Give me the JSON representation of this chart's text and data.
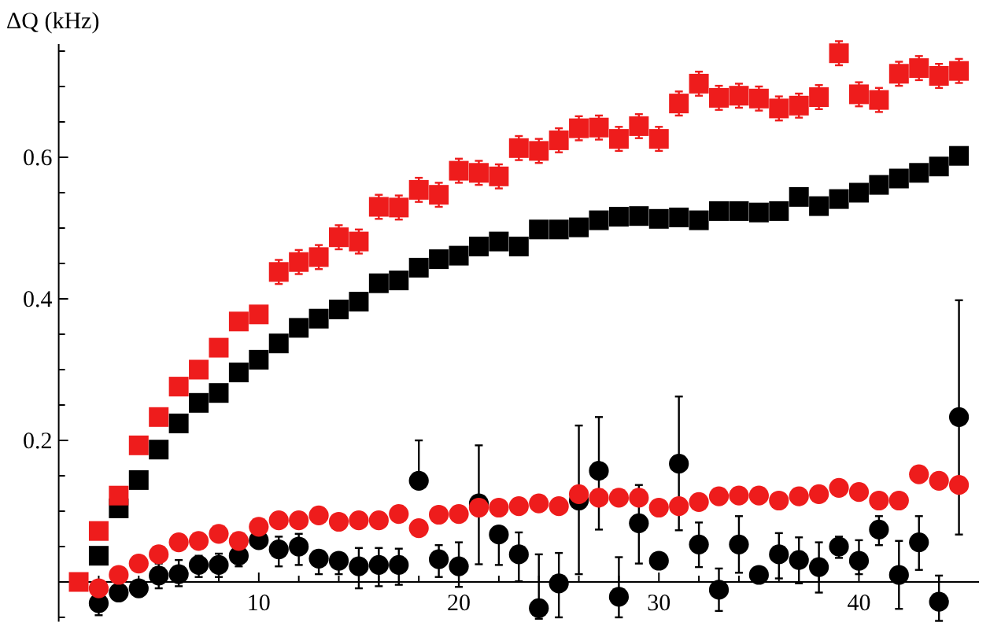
{
  "chart_data": {
    "type": "scatter",
    "ylabel": "ΔQ (kHz)",
    "xlim": [
      0,
      46
    ],
    "ylim": [
      -0.056,
      0.76
    ],
    "xticks": [
      {
        "value": 2,
        "label": null
      },
      {
        "value": 4,
        "label": null
      },
      {
        "value": 6,
        "label": null
      },
      {
        "value": 8,
        "label": null
      },
      10,
      {
        "value": 12,
        "label": null
      },
      {
        "value": 14,
        "label": null
      },
      {
        "value": 16,
        "label": null
      },
      {
        "value": 18,
        "label": null
      },
      20,
      {
        "value": 22,
        "label": null
      },
      {
        "value": 24,
        "label": null
      },
      {
        "value": 26,
        "label": null
      },
      {
        "value": 28,
        "label": null
      },
      30,
      {
        "value": 32,
        "label": null
      },
      {
        "value": 34,
        "label": null
      },
      {
        "value": 36,
        "label": null
      },
      {
        "value": 38,
        "label": null
      },
      40,
      {
        "value": 42,
        "label": null
      },
      {
        "value": 44,
        "label": null
      }
    ],
    "yticks": [
      {
        "value": -0.05,
        "label": null
      },
      {
        "value": 0.05,
        "label": null
      },
      {
        "value": 0.1,
        "label": null
      },
      {
        "value": 0.15,
        "label": null
      },
      0.2,
      {
        "value": 0.25,
        "label": null
      },
      {
        "value": 0.3,
        "label": null
      },
      {
        "value": 0.35,
        "label": null
      },
      0.4,
      {
        "value": 0.45,
        "label": null
      },
      {
        "value": 0.5,
        "label": null
      },
      {
        "value": 0.55,
        "label": null
      },
      0.6,
      {
        "value": 0.65,
        "label": null
      },
      {
        "value": 0.7,
        "label": null
      },
      {
        "value": 0.75,
        "label": null
      }
    ],
    "grid": false,
    "series": [
      {
        "color": "#ee1c1c",
        "marker": "square",
        "x": [
          1,
          2,
          3,
          4,
          5,
          6,
          7,
          8,
          9,
          10,
          11,
          12,
          13,
          14,
          15,
          16,
          17,
          18,
          19,
          20,
          21,
          22,
          23,
          24,
          25,
          26,
          27,
          28,
          29,
          30,
          31,
          32,
          33,
          34,
          35,
          36,
          37,
          38,
          39,
          40,
          41,
          42,
          43,
          44,
          45
        ],
        "values": [
          0.0,
          0.072,
          0.122,
          0.193,
          0.233,
          0.276,
          0.3,
          0.331,
          0.368,
          0.378,
          0.438,
          0.452,
          0.459,
          0.487,
          0.481,
          0.53,
          0.529,
          0.554,
          0.547,
          0.581,
          0.578,
          0.573,
          0.613,
          0.609,
          0.624,
          0.641,
          0.642,
          0.626,
          0.644,
          0.626,
          0.676,
          0.704,
          0.684,
          0.687,
          0.683,
          0.669,
          0.673,
          0.685,
          0.747,
          0.689,
          0.681,
          0.718,
          0.726,
          0.715,
          0.722
        ],
        "errors": [
          null,
          null,
          null,
          null,
          null,
          null,
          null,
          null,
          null,
          null,
          0.017,
          0.017,
          0.017,
          0.017,
          0.017,
          0.017,
          0.017,
          0.017,
          0.017,
          0.017,
          0.017,
          0.017,
          0.017,
          0.017,
          0.017,
          0.017,
          0.017,
          0.017,
          0.017,
          0.017,
          0.017,
          0.017,
          0.017,
          0.017,
          0.017,
          0.017,
          0.017,
          0.017,
          0.017,
          0.017,
          0.017,
          0.017,
          0.017,
          0.017,
          0.017
        ]
      },
      {
        "color": "#000000",
        "marker": "square",
        "x": [
          2,
          3,
          4,
          5,
          6,
          7,
          8,
          9,
          10,
          11,
          12,
          13,
          14,
          15,
          16,
          17,
          18,
          19,
          20,
          21,
          22,
          23,
          24,
          25,
          26,
          27,
          28,
          29,
          30,
          31,
          32,
          33,
          34,
          35,
          36,
          37,
          38,
          39,
          40,
          41,
          42,
          43,
          44,
          45
        ],
        "values": [
          0.037,
          0.104,
          0.144,
          0.187,
          0.224,
          0.253,
          0.267,
          0.296,
          0.314,
          0.337,
          0.359,
          0.372,
          0.385,
          0.396,
          0.422,
          0.426,
          0.444,
          0.456,
          0.461,
          0.474,
          0.481,
          0.474,
          0.498,
          0.498,
          0.501,
          0.511,
          0.516,
          0.517,
          0.513,
          0.515,
          0.511,
          0.524,
          0.524,
          0.522,
          0.524,
          0.544,
          0.531,
          0.541,
          0.55,
          0.561,
          0.57,
          0.578,
          0.587,
          0.602
        ]
      },
      {
        "color": "#ee1c1c",
        "marker": "circle",
        "x": [
          2,
          3,
          4,
          5,
          6,
          7,
          8,
          9,
          10,
          11,
          12,
          13,
          14,
          15,
          16,
          17,
          18,
          19,
          20,
          21,
          22,
          23,
          24,
          25,
          26,
          27,
          28,
          29,
          30,
          31,
          32,
          33,
          34,
          35,
          36,
          37,
          38,
          39,
          40,
          41,
          42,
          43,
          44,
          45
        ],
        "values": [
          -0.009,
          0.01,
          0.026,
          0.039,
          0.056,
          0.058,
          0.068,
          0.058,
          0.078,
          0.087,
          0.087,
          0.094,
          0.085,
          0.087,
          0.087,
          0.096,
          0.076,
          0.095,
          0.096,
          0.105,
          0.105,
          0.107,
          0.111,
          0.107,
          0.124,
          0.119,
          0.119,
          0.119,
          0.105,
          0.107,
          0.113,
          0.121,
          0.122,
          0.122,
          0.115,
          0.121,
          0.124,
          0.133,
          0.127,
          0.115,
          0.115,
          0.152,
          0.143,
          0.137
        ]
      },
      {
        "color": "#000000",
        "marker": "circle",
        "x": [
          2,
          3,
          4,
          5,
          6,
          7,
          8,
          9,
          10,
          11,
          12,
          13,
          14,
          15,
          16,
          17,
          18,
          19,
          20,
          21,
          22,
          23,
          24,
          25,
          26,
          27,
          28,
          29,
          30,
          31,
          32,
          33,
          34,
          35,
          36,
          37,
          38,
          39,
          40,
          41,
          42,
          43,
          44,
          45
        ],
        "values": [
          -0.03,
          -0.015,
          -0.009,
          0.009,
          0.011,
          0.024,
          0.024,
          0.037,
          0.059,
          0.046,
          0.05,
          0.033,
          0.03,
          0.022,
          0.024,
          0.024,
          0.143,
          0.032,
          0.022,
          0.111,
          0.067,
          0.039,
          -0.037,
          -0.002,
          0.115,
          0.157,
          -0.021,
          0.083,
          0.03,
          0.167,
          0.053,
          -0.011,
          0.053,
          0.01,
          0.039,
          0.031,
          0.021,
          0.05,
          0.03,
          0.074,
          0.01,
          0.056,
          -0.028,
          0.233
        ],
        "errors": [
          [
            -0.047,
            -0.015
          ],
          null,
          [
            -0.021,
            0.0
          ],
          [
            -0.009,
            0.026
          ],
          [
            -0.006,
            0.031
          ],
          [
            0.007,
            0.037
          ],
          [
            0.007,
            0.04
          ],
          [
            0.022,
            0.046
          ],
          [
            0.05,
            0.068
          ],
          [
            0.022,
            0.064
          ],
          [
            0.024,
            0.068
          ],
          [
            0.011,
            0.044
          ],
          [
            0.011,
            0.041
          ],
          [
            -0.009,
            0.048
          ],
          [
            -0.006,
            0.048
          ],
          [
            -0.004,
            0.047
          ],
          [
            0.143,
            0.2
          ],
          [
            0.007,
            0.052
          ],
          [
            -0.007,
            0.056
          ],
          [
            0.025,
            0.193
          ],
          [
            0.024,
            0.067
          ],
          [
            0.001,
            0.07
          ],
          [
            -0.052,
            0.039
          ],
          [
            -0.05,
            0.041
          ],
          [
            0.011,
            0.221
          ],
          [
            0.074,
            0.233
          ],
          [
            -0.05,
            0.035
          ],
          [
            0.026,
            0.137
          ],
          [
            0.02,
            0.04
          ],
          [
            0.073,
            0.262
          ],
          [
            0.021,
            0.084
          ],
          [
            -0.041,
            0.019
          ],
          [
            0.013,
            0.093
          ],
          [
            0.0,
            0.02
          ],
          [
            0.005,
            0.069
          ],
          [
            -0.002,
            0.063
          ],
          [
            -0.015,
            0.056
          ],
          [
            0.034,
            0.064
          ],
          [
            0.011,
            0.059
          ],
          [
            0.052,
            0.093
          ],
          [
            -0.038,
            0.058
          ],
          [
            0.017,
            0.093
          ],
          [
            -0.055,
            0.009
          ],
          [
            0.067,
            0.398
          ]
        ]
      }
    ]
  }
}
